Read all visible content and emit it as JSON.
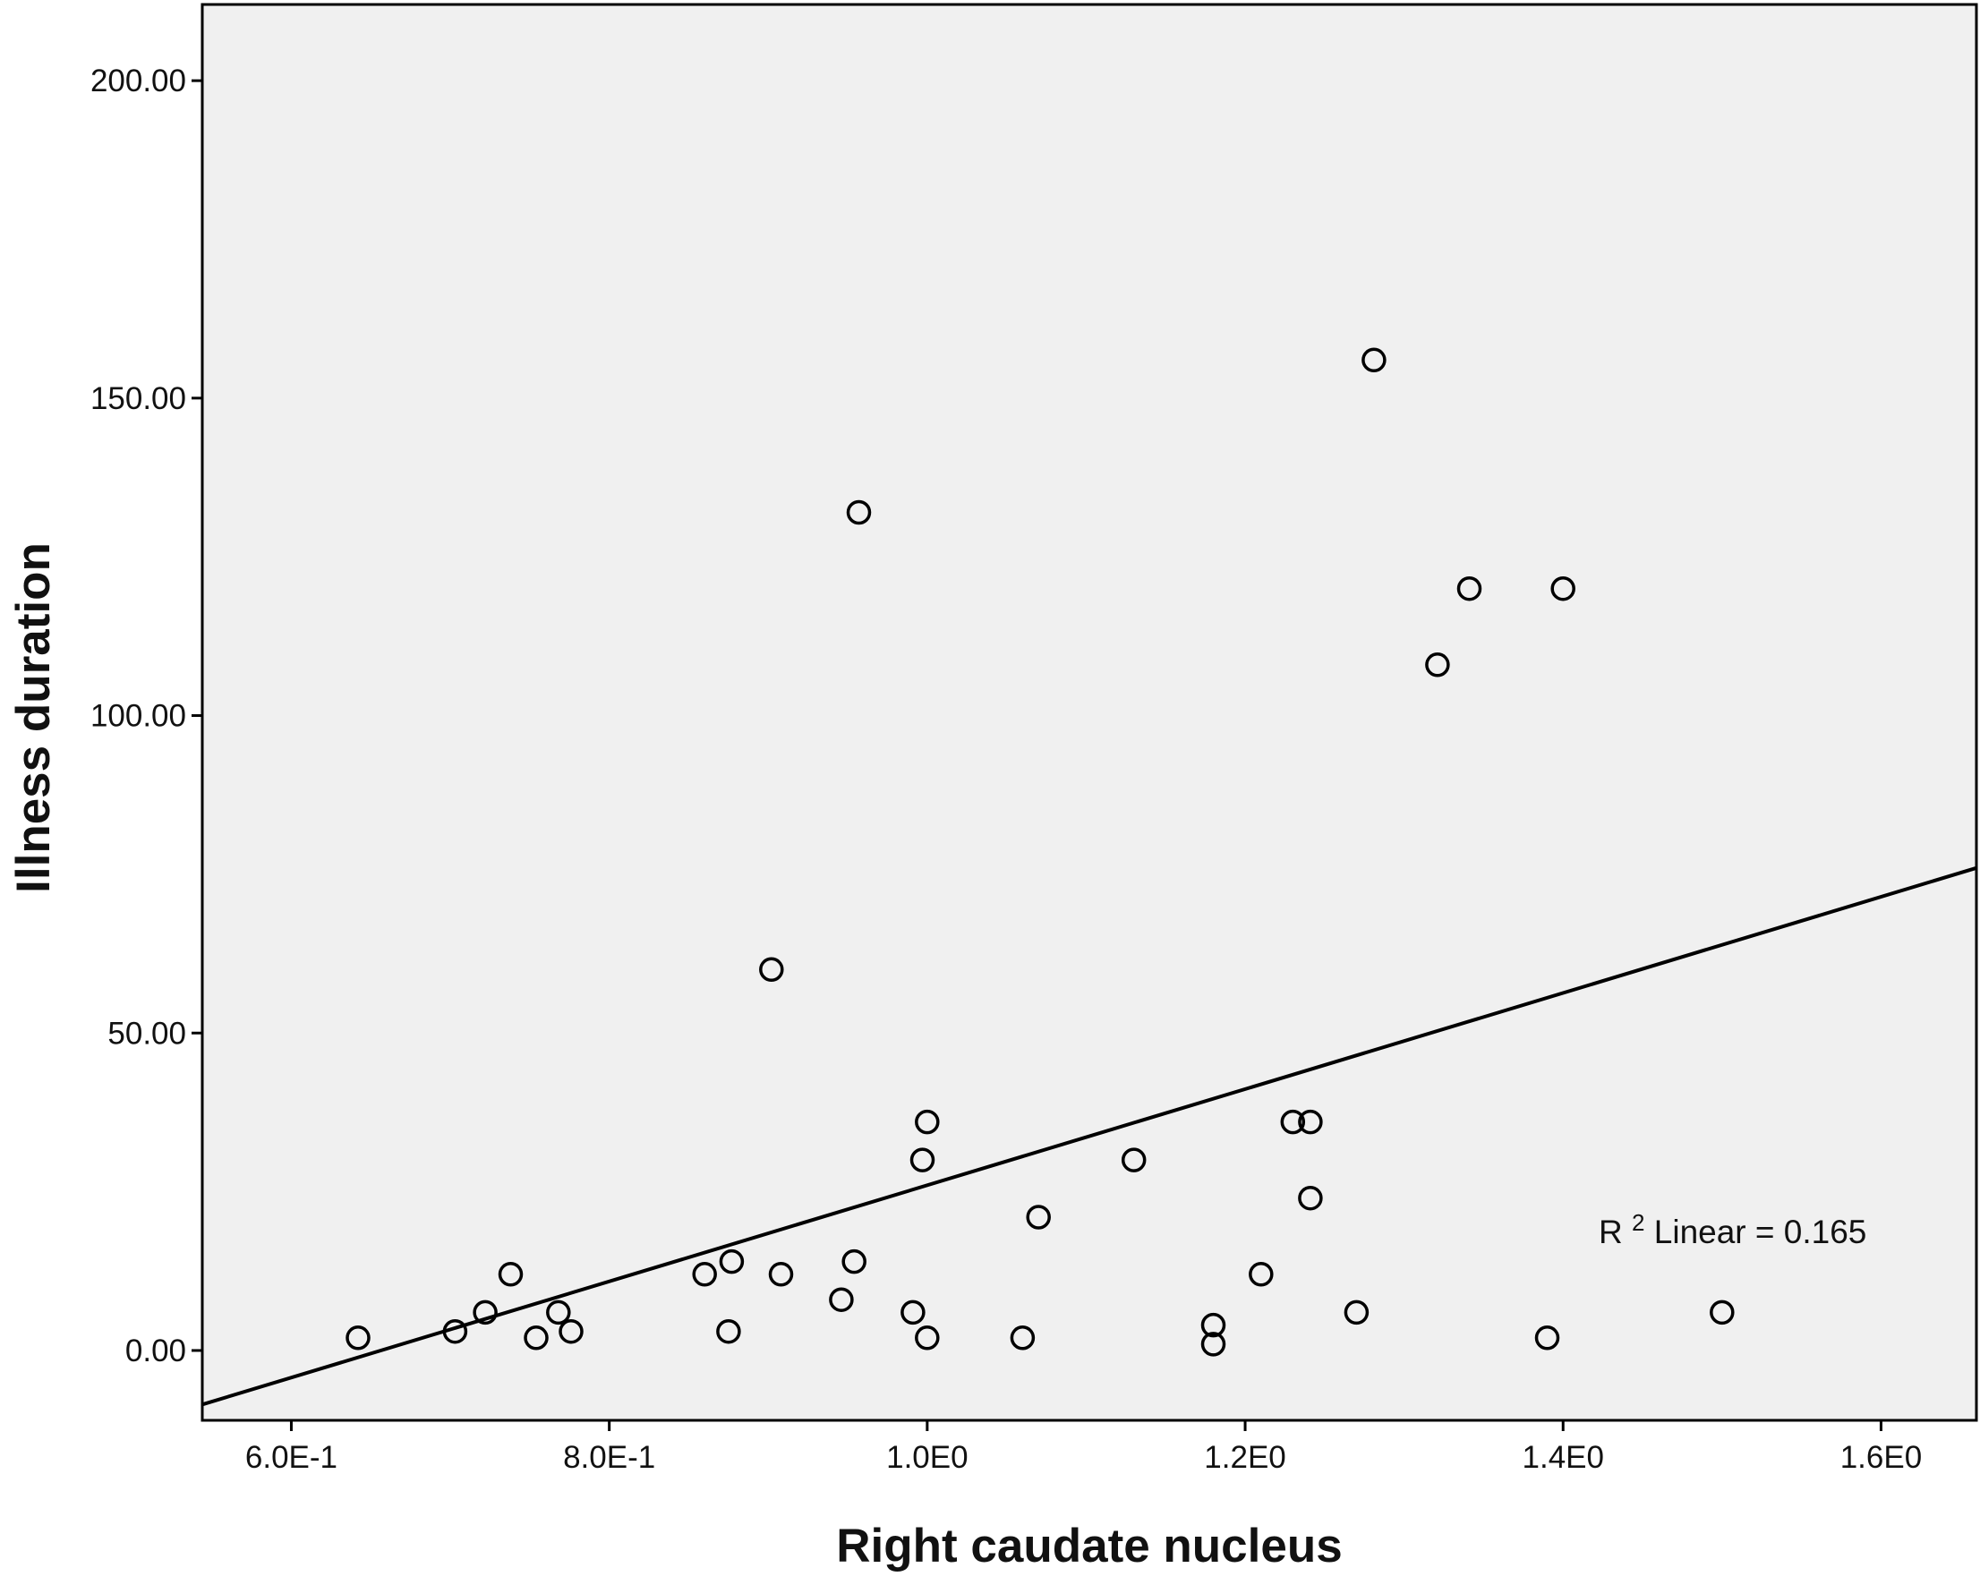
{
  "chart_data": {
    "type": "scatter",
    "title": "",
    "xlabel": "Right caudate nucleus",
    "ylabel": "Illness duration",
    "xlim": [
      0.544,
      1.66
    ],
    "ylim": [
      -11,
      212
    ],
    "x_ticks": [
      {
        "value": 0.6,
        "label": "6.0E-1"
      },
      {
        "value": 0.8,
        "label": "8.0E-1"
      },
      {
        "value": 1.0,
        "label": "1.0E0"
      },
      {
        "value": 1.2,
        "label": "1.2E0"
      },
      {
        "value": 1.4,
        "label": "1.4E0"
      },
      {
        "value": 1.6,
        "label": "1.6E0"
      }
    ],
    "y_ticks": [
      {
        "value": 0,
        "label": "0.00"
      },
      {
        "value": 50,
        "label": "50.00"
      },
      {
        "value": 100,
        "label": "100.00"
      },
      {
        "value": 150,
        "label": "150.00"
      },
      {
        "value": 200,
        "label": "200.00"
      }
    ],
    "grid": false,
    "background_color": "#f0f0f0",
    "marker": "open-circle",
    "points": [
      {
        "x": 0.642,
        "y": 2
      },
      {
        "x": 0.703,
        "y": 3
      },
      {
        "x": 0.722,
        "y": 6
      },
      {
        "x": 0.738,
        "y": 12
      },
      {
        "x": 0.754,
        "y": 2
      },
      {
        "x": 0.768,
        "y": 6
      },
      {
        "x": 0.776,
        "y": 3
      },
      {
        "x": 0.86,
        "y": 12
      },
      {
        "x": 0.875,
        "y": 3
      },
      {
        "x": 0.877,
        "y": 14
      },
      {
        "x": 0.902,
        "y": 60
      },
      {
        "x": 0.908,
        "y": 12
      },
      {
        "x": 0.946,
        "y": 8
      },
      {
        "x": 0.954,
        "y": 14
      },
      {
        "x": 0.957,
        "y": 132
      },
      {
        "x": 0.991,
        "y": 6
      },
      {
        "x": 0.997,
        "y": 30
      },
      {
        "x": 1.0,
        "y": 2
      },
      {
        "x": 1.0,
        "y": 36
      },
      {
        "x": 1.06,
        "y": 2
      },
      {
        "x": 1.07,
        "y": 21
      },
      {
        "x": 1.13,
        "y": 30
      },
      {
        "x": 1.18,
        "y": 1
      },
      {
        "x": 1.18,
        "y": 4
      },
      {
        "x": 1.21,
        "y": 12
      },
      {
        "x": 1.23,
        "y": 36
      },
      {
        "x": 1.241,
        "y": 36
      },
      {
        "x": 1.241,
        "y": 24
      },
      {
        "x": 1.27,
        "y": 6
      },
      {
        "x": 1.281,
        "y": 156
      },
      {
        "x": 1.321,
        "y": 108
      },
      {
        "x": 1.341,
        "y": 120
      },
      {
        "x": 1.39,
        "y": 2
      },
      {
        "x": 1.4,
        "y": 120
      },
      {
        "x": 1.5,
        "y": 6
      }
    ],
    "fit_line": {
      "type": "linear",
      "x": [
        0.544,
        1.66
      ],
      "y": [
        -8.5,
        76
      ]
    },
    "annotation": {
      "r2_prefix": "R",
      "r2_superscript": "2",
      "r2_text": " Linear = 0.165"
    }
  }
}
